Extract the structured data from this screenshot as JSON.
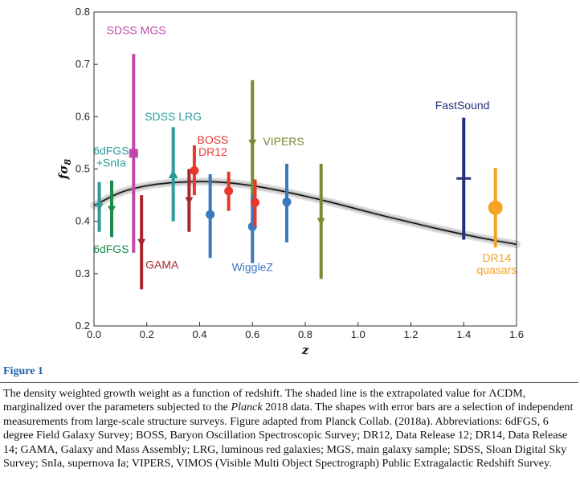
{
  "figure": {
    "title": "Figure 1",
    "caption_parts": [
      "The density weighted growth weight as a function of redshift. The shaded line is the extrapolated value for ΛCDM, marginalized over the parameters subjected to the ",
      "Planck",
      " 2018 data. The shapes with error bars are a selection of independent measurements from large-scale structure surveys. Figure adapted from Planck Collab. (2018a). Abbreviations: 6dFGS, 6 degree Field Galaxy Survey; BOSS, Baryon Oscillation Spectroscopic Survey; DR12, Data Release 12; DR14, Data Release 14; GAMA, Galaxy and Mass Assembly; LRG, luminous red galaxies; MGS, main galaxy sample; SDSS, Sloan Digital Sky Survey; SnIa, supernova Ia; VIPERS, VIMOS (Visible Multi Object Spectrograph) Public Extragalactic Redshift Survey."
    ]
  },
  "chart_data": {
    "type": "scatter",
    "xlabel": "z",
    "ylabel_main": "fσ",
    "ylabel_sub": "8",
    "xlim": [
      0,
      1.6
    ],
    "ylim": [
      0.2,
      0.8
    ],
    "x_ticks": [
      "0.0",
      "0.2",
      "0.4",
      "0.6",
      "0.8",
      "1.0",
      "1.2",
      "1.4",
      "1.6"
    ],
    "y_ticks": [
      "0.2",
      "0.3",
      "0.4",
      "0.5",
      "0.6",
      "0.7",
      "0.8"
    ],
    "grid": false,
    "model_curve": {
      "color": "#111111",
      "x": [
        0,
        0.1,
        0.2,
        0.3,
        0.4,
        0.5,
        0.6,
        0.7,
        0.8,
        0.9,
        1.0,
        1.1,
        1.2,
        1.3,
        1.4,
        1.5,
        1.6
      ],
      "y": [
        0.43,
        0.455,
        0.468,
        0.474,
        0.476,
        0.474,
        0.468,
        0.459,
        0.448,
        0.436,
        0.423,
        0.41,
        0.398,
        0.386,
        0.375,
        0.365,
        0.356
      ]
    },
    "measurements": [
      {
        "survey": "6dFGS+SnIa",
        "color": "#2b9c9a",
        "marker": "triangle-down",
        "z": 0.02,
        "value": 0.428,
        "low": 0.38,
        "high": 0.475
      },
      {
        "survey": "6dFGS",
        "color": "#1a8a4a",
        "marker": "triangle-down",
        "z": 0.067,
        "value": 0.423,
        "low": 0.37,
        "high": 0.478
      },
      {
        "survey": "SDSS MGS",
        "color": "#c048a8",
        "marker": "square",
        "z": 0.15,
        "value": 0.53,
        "low": 0.34,
        "high": 0.72
      },
      {
        "survey": "GAMA",
        "color": "#a8262c",
        "marker": "triangle-down",
        "z": 0.18,
        "value": 0.36,
        "low": 0.27,
        "high": 0.45
      },
      {
        "survey": "SDSS LRG",
        "color": "#2b9c9a",
        "marker": "triangle-up",
        "z": 0.3,
        "value": 0.49,
        "low": 0.4,
        "high": 0.58
      },
      {
        "survey": "GAMA",
        "color": "#a8262c",
        "marker": "triangle-down",
        "z": 0.36,
        "value": 0.44,
        "low": 0.38,
        "high": 0.5
      },
      {
        "survey": "BOSS DR12",
        "color": "#e8382e",
        "marker": "circle",
        "z": 0.38,
        "value": 0.497,
        "low": 0.45,
        "high": 0.545
      },
      {
        "survey": "WiggleZ",
        "color": "#3a78c0",
        "marker": "circle",
        "z": 0.44,
        "value": 0.413,
        "low": 0.33,
        "high": 0.49
      },
      {
        "survey": "BOSS DR12",
        "color": "#e8382e",
        "marker": "circle",
        "z": 0.51,
        "value": 0.458,
        "low": 0.42,
        "high": 0.495
      },
      {
        "survey": "VIPERS",
        "color": "#7c8a34",
        "marker": "triangle-down",
        "z": 0.6,
        "value": 0.55,
        "low": 0.43,
        "high": 0.67
      },
      {
        "survey": "WiggleZ",
        "color": "#3a78c0",
        "marker": "circle",
        "z": 0.6,
        "value": 0.39,
        "low": 0.32,
        "high": 0.45
      },
      {
        "survey": "BOSS DR12",
        "color": "#e8382e",
        "marker": "circle",
        "z": 0.61,
        "value": 0.436,
        "low": 0.39,
        "high": 0.48
      },
      {
        "survey": "WiggleZ",
        "color": "#3a78c0",
        "marker": "circle",
        "z": 0.73,
        "value": 0.437,
        "low": 0.36,
        "high": 0.51
      },
      {
        "survey": "VIPERS",
        "color": "#7c8a34",
        "marker": "triangle-down",
        "z": 0.86,
        "value": 0.4,
        "low": 0.29,
        "high": 0.51
      },
      {
        "survey": "FastSound",
        "color": "#25307c",
        "marker": "hbar",
        "z": 1.4,
        "value": 0.482,
        "low": 0.365,
        "high": 0.598
      },
      {
        "survey": "DR14 quasars",
        "color": "#f4a324",
        "marker": "circle-large",
        "z": 1.52,
        "value": 0.426,
        "low": 0.35,
        "high": 0.502
      }
    ],
    "labels": [
      {
        "lines": [
          "SDSS MGS"
        ],
        "color": "#c048a8",
        "z": 0.16,
        "value": 0.758,
        "anchor": "middle"
      },
      {
        "lines": [
          "SDSS LRG"
        ],
        "color": "#2b9c9a",
        "z": 0.3,
        "value": 0.593,
        "anchor": "middle"
      },
      {
        "lines": [
          "6dFGS",
          "+SnIa"
        ],
        "color": "#2b9c9a",
        "z": 0.065,
        "value": 0.528,
        "anchor": "middle"
      },
      {
        "lines": [
          "BOSS",
          "DR12"
        ],
        "color": "#e8382e",
        "z": 0.45,
        "value": 0.548,
        "anchor": "middle"
      },
      {
        "lines": [
          "VIPERS"
        ],
        "color": "#7c8a34",
        "z": 0.64,
        "value": 0.545,
        "anchor": "start"
      },
      {
        "lines": [
          "FastSound"
        ],
        "color": "#25307c",
        "z": 1.395,
        "value": 0.614,
        "anchor": "middle"
      },
      {
        "lines": [
          "6dFGS"
        ],
        "color": "#1a8a4a",
        "z": 0.065,
        "value": 0.34,
        "anchor": "middle"
      },
      {
        "lines": [
          "GAMA"
        ],
        "color": "#a8262c",
        "z": 0.195,
        "value": 0.31,
        "anchor": "start"
      },
      {
        "lines": [
          "WiggleZ"
        ],
        "color": "#3a78c0",
        "z": 0.6,
        "value": 0.305,
        "anchor": "middle"
      },
      {
        "lines": [
          "DR14",
          "quasars"
        ],
        "color": "#f4a324",
        "z": 1.525,
        "value": 0.323,
        "anchor": "middle"
      }
    ]
  }
}
